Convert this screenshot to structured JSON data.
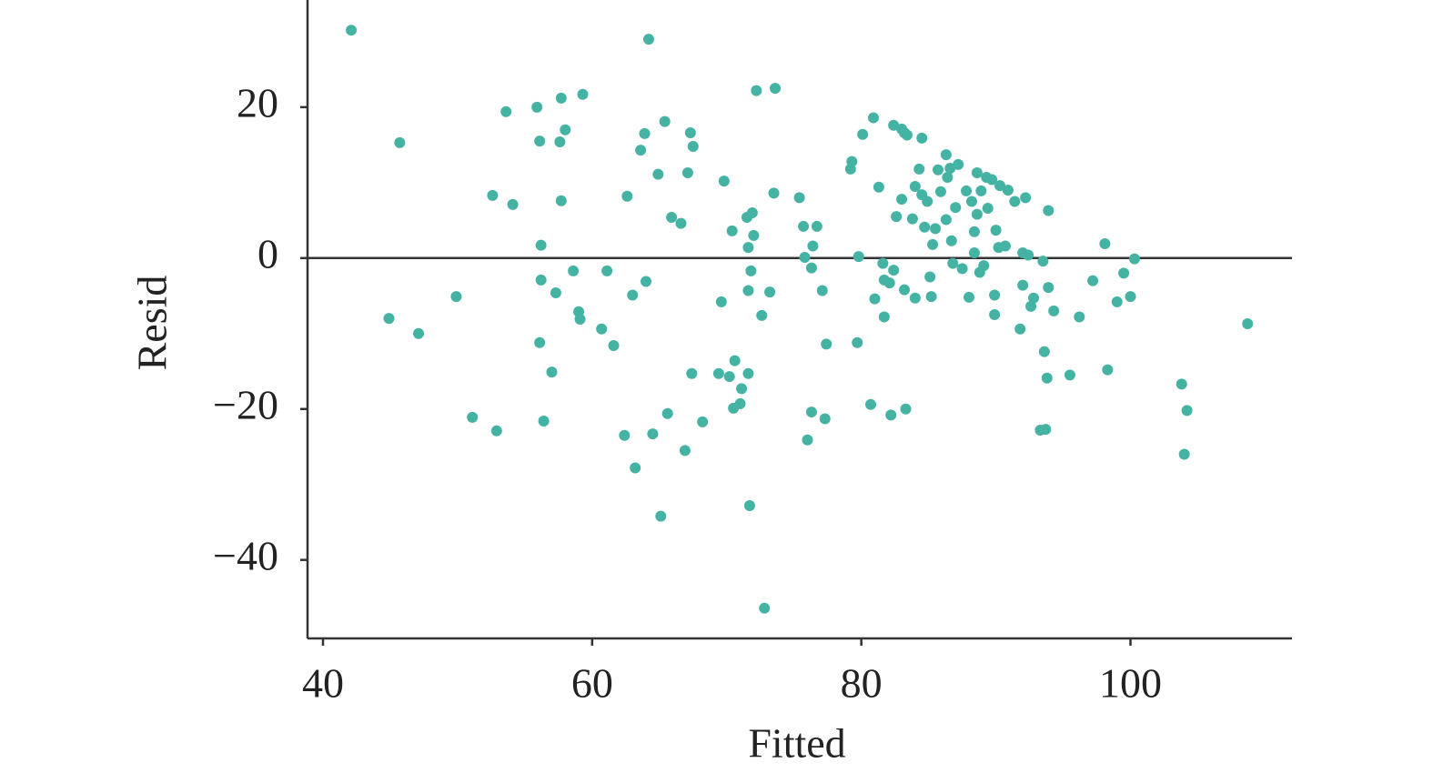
{
  "chart_data": {
    "type": "scatter",
    "xlabel": "Fitted",
    "ylabel": "Resid",
    "color": "#45b3a3",
    "xlim": [
      38.85,
      112
    ],
    "ylim": [
      -50.4,
      34.2
    ],
    "xticks": [
      40,
      60,
      80,
      100
    ],
    "yticks": [
      {
        "value": -40,
        "label": "−40"
      },
      {
        "value": -20,
        "label": "−20"
      },
      0,
      20
    ],
    "hline": 0,
    "x": [
      42.1,
      64.2,
      45.7,
      44.9,
      47.1,
      49.9,
      51.1,
      52.6,
      52.9,
      53.6,
      54.1,
      55.9,
      56.1,
      56.2,
      56.2,
      56.1,
      56.4,
      57.0,
      57.3,
      57.6,
      57.7,
      57.7,
      58.0,
      58.6,
      59.0,
      59.1,
      59.3,
      60.7,
      61.1,
      61.6,
      62.4,
      62.6,
      63.0,
      63.2,
      63.6,
      63.9,
      64.0,
      64.5,
      64.9,
      65.1,
      65.4,
      65.6,
      65.9,
      66.6,
      66.9,
      67.1,
      67.3,
      67.4,
      67.5,
      68.2,
      69.4,
      69.6,
      69.8,
      70.2,
      70.4,
      70.5,
      70.6,
      71.0,
      71.1,
      71.5,
      71.6,
      71.6,
      71.6,
      71.7,
      71.8,
      71.9,
      72.0,
      72.2,
      72.6,
      72.8,
      73.2,
      73.5,
      73.6,
      75.4,
      75.7,
      75.8,
      76.0,
      76.3,
      76.3,
      76.4,
      76.7,
      77.1,
      77.3,
      77.4,
      79.2,
      79.3,
      79.7,
      79.8,
      80.1,
      80.7,
      80.9,
      81.0,
      81.3,
      81.6,
      81.7,
      81.7,
      82.1,
      82.2,
      82.4,
      82.4,
      82.6,
      83.0,
      83.0,
      83.2,
      83.2,
      83.3,
      83.4,
      83.8,
      84.0,
      84.0,
      84.3,
      84.5,
      84.5,
      84.7,
      84.9,
      85.1,
      85.2,
      85.3,
      85.5,
      85.7,
      85.9,
      86.3,
      86.3,
      86.4,
      86.6,
      86.7,
      86.8,
      87.0,
      87.2,
      87.5,
      87.8,
      88.0,
      88.2,
      88.4,
      88.4,
      88.6,
      88.6,
      88.8,
      88.9,
      89.1,
      89.3,
      89.4,
      89.7,
      89.9,
      89.9,
      90.0,
      90.2,
      90.3,
      90.7,
      90.9,
      91.4,
      91.8,
      92.0,
      92.0,
      92.2,
      92.4,
      92.6,
      92.8,
      93.3,
      93.5,
      93.6,
      93.7,
      93.8,
      93.9,
      93.9,
      94.3,
      95.5,
      96.2,
      97.2,
      98.1,
      98.3,
      99.0,
      99.5,
      100.0,
      100.3,
      103.8,
      104.2,
      104.0,
      108.7
    ],
    "y": [
      30.2,
      29.0,
      15.3,
      -8.0,
      -10.0,
      -5.1,
      -21.1,
      8.3,
      -22.9,
      19.4,
      7.1,
      20.0,
      15.5,
      1.7,
      -2.9,
      -11.2,
      -21.6,
      -15.1,
      -4.6,
      15.4,
      7.6,
      21.2,
      17.0,
      -1.7,
      -7.1,
      -8.1,
      21.7,
      -9.4,
      -1.7,
      -11.6,
      -23.5,
      8.2,
      -4.9,
      -27.8,
      14.3,
      16.5,
      -3.1,
      -23.3,
      11.1,
      -34.2,
      18.1,
      -20.6,
      5.4,
      4.6,
      -25.5,
      11.3,
      16.6,
      -15.3,
      14.8,
      -21.7,
      -15.3,
      -5.8,
      10.2,
      -15.7,
      3.6,
      -19.9,
      -13.6,
      -19.3,
      -17.3,
      5.4,
      -15.3,
      1.4,
      -4.3,
      -32.8,
      -1.7,
      6.0,
      3.0,
      22.2,
      -7.6,
      -46.4,
      -4.5,
      8.6,
      22.5,
      8.0,
      4.2,
      0.1,
      -24.1,
      -1.3,
      -20.4,
      1.6,
      4.2,
      -4.3,
      -21.3,
      -11.4,
      11.8,
      12.8,
      -11.2,
      0.2,
      16.4,
      -19.4,
      18.6,
      -5.4,
      9.4,
      -0.7,
      -7.8,
      -2.9,
      -3.3,
      -20.8,
      -1.6,
      17.6,
      5.5,
      17.1,
      7.8,
      -4.2,
      16.6,
      -20.0,
      16.3,
      5.2,
      -5.3,
      9.5,
      11.8,
      8.4,
      15.9,
      4.1,
      7.5,
      -2.5,
      -5.1,
      1.8,
      3.9,
      11.7,
      8.8,
      5.1,
      13.7,
      10.7,
      11.9,
      2.3,
      -0.7,
      6.7,
      12.4,
      -1.4,
      8.9,
      -5.2,
      7.5,
      3.5,
      0.7,
      5.8,
      11.3,
      -1.9,
      8.9,
      -1.0,
      10.7,
      6.6,
      10.4,
      -7.5,
      -4.9,
      3.7,
      1.4,
      9.6,
      1.6,
      9.0,
      7.5,
      -9.4,
      0.7,
      -3.6,
      8.0,
      0.4,
      -6.4,
      -5.3,
      -22.8,
      -0.4,
      -12.4,
      -22.7,
      -15.9,
      -3.9,
      6.3,
      -7.0,
      -15.5,
      -7.8,
      -3.0,
      1.9,
      -14.8,
      -5.8,
      -2.0,
      -5.1,
      -0.1,
      -16.7,
      -20.2,
      -26.0,
      -8.7
    ]
  }
}
